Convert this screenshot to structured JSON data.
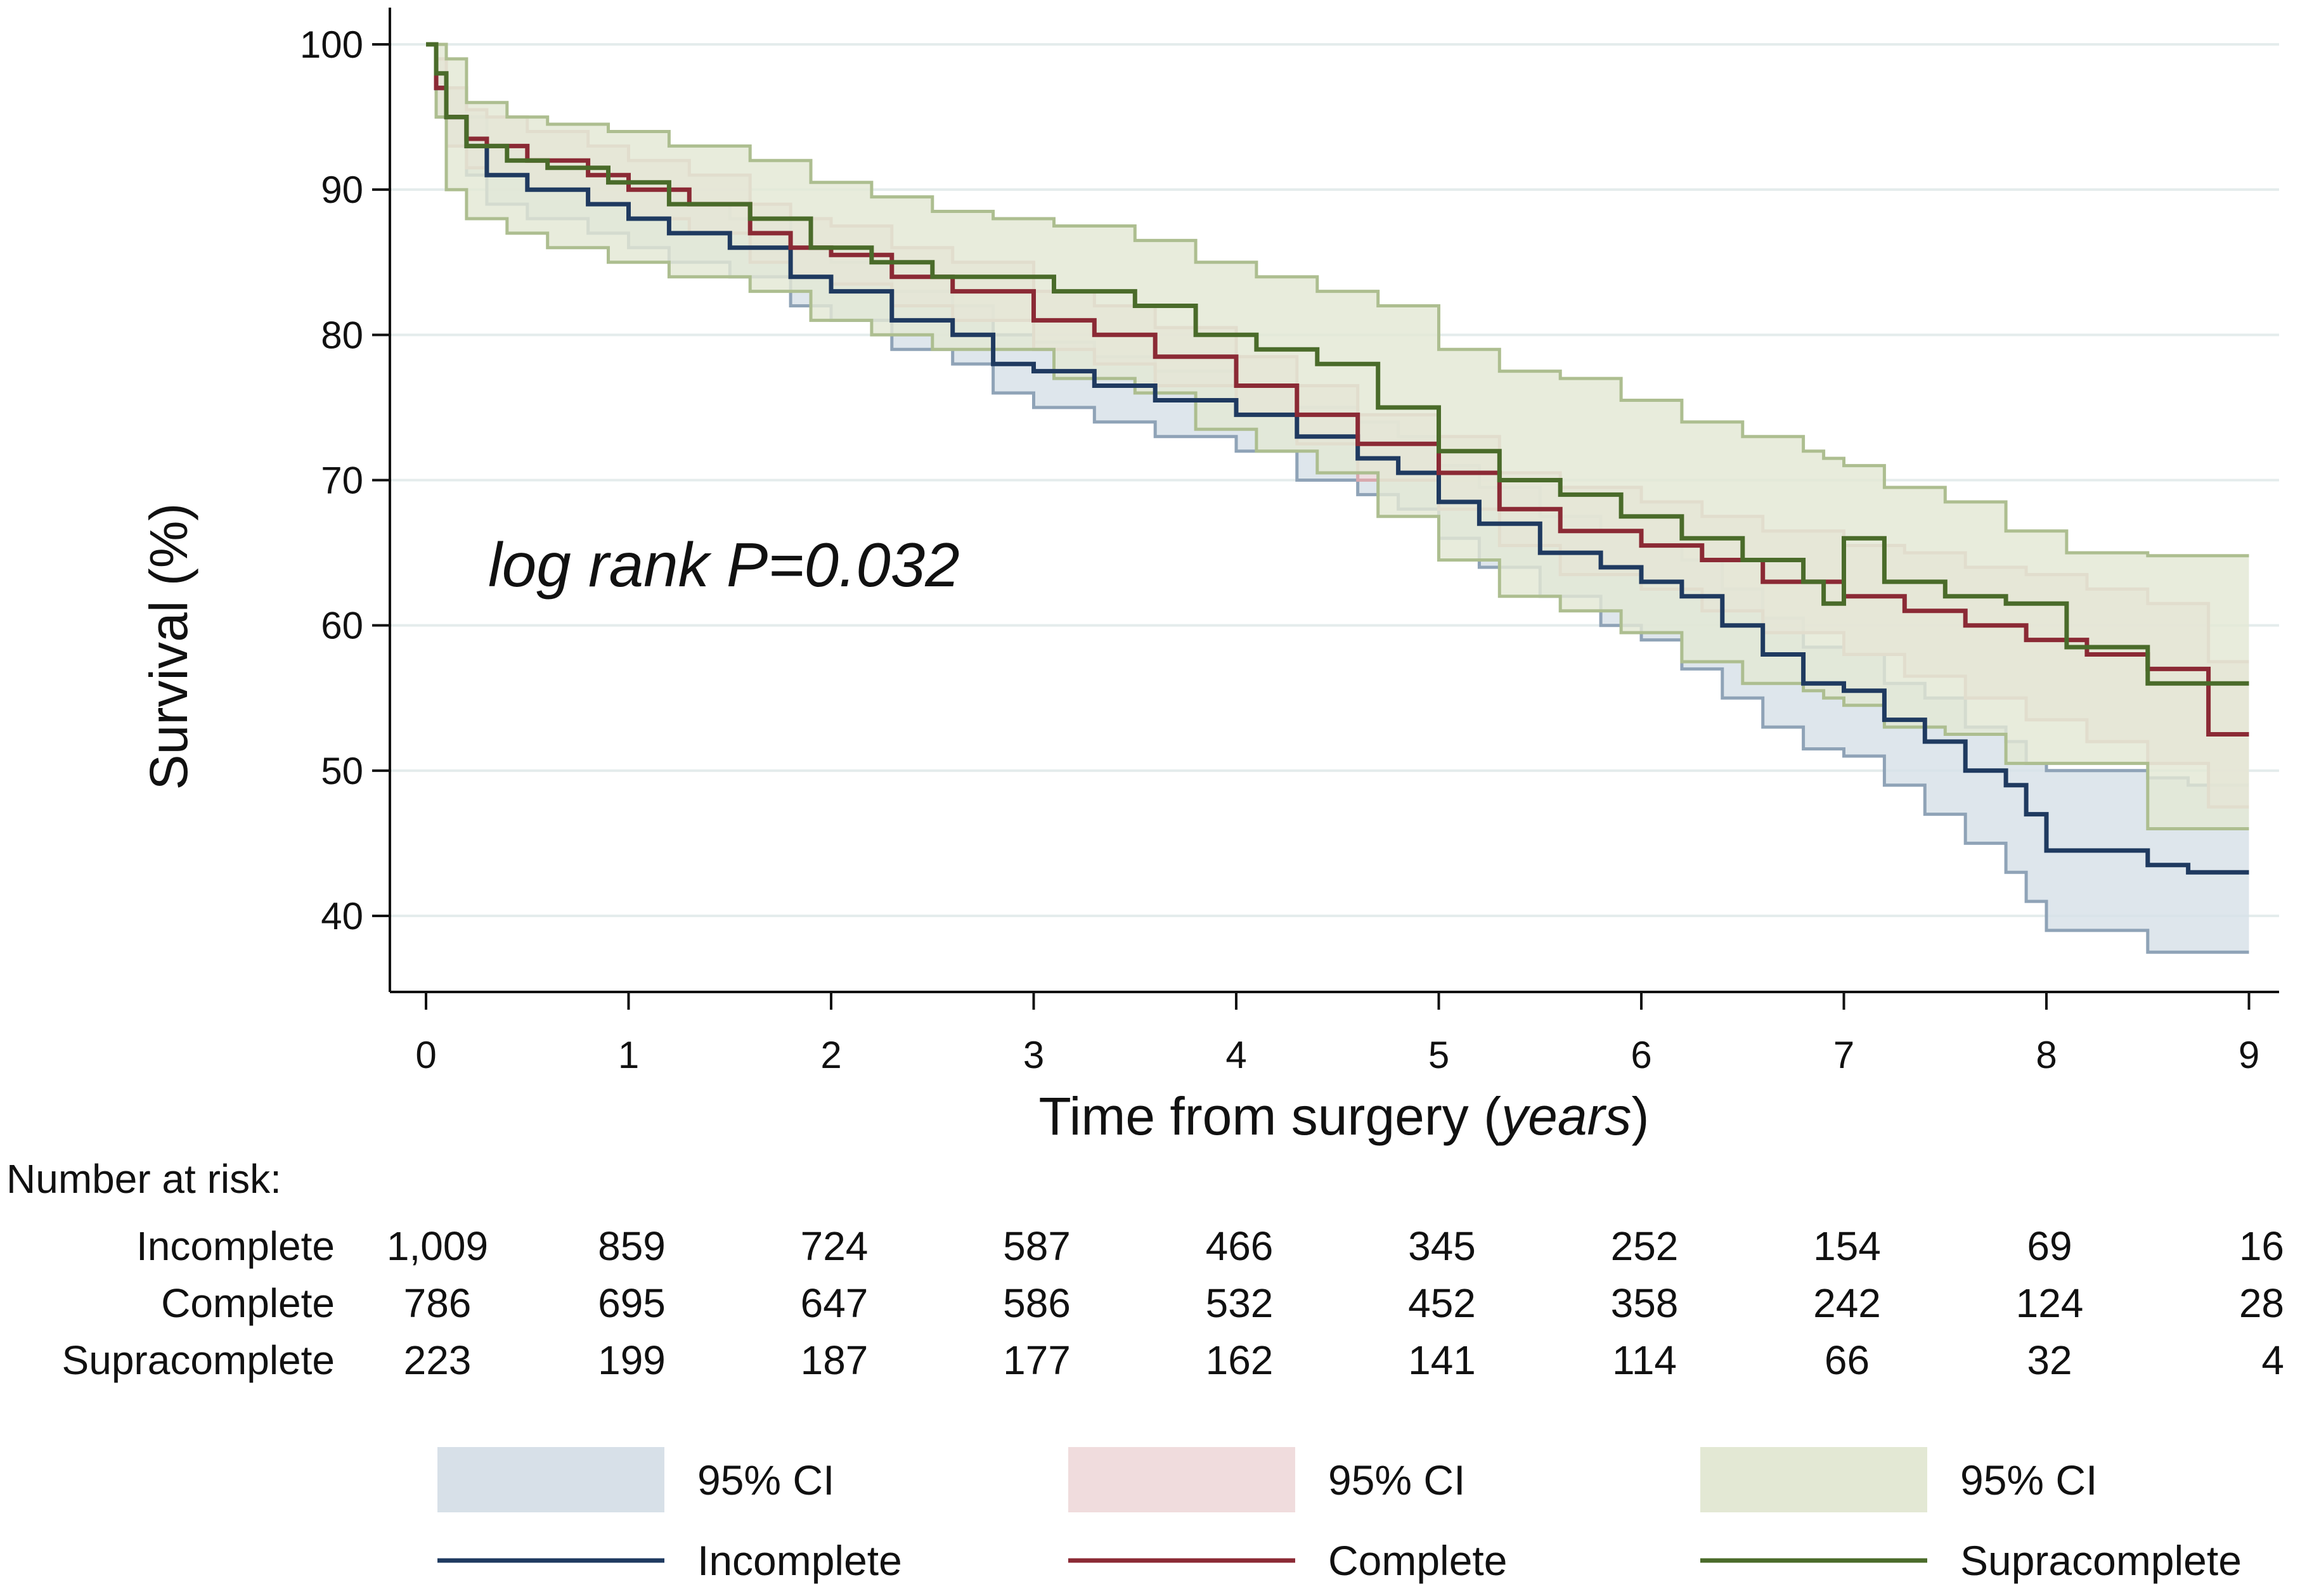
{
  "chart_data": {
    "type": "line",
    "subtype": "kaplan-meier step survival curves with 95% CI bands",
    "ylabel": "Survival (%)",
    "xlabel_prefix": "Time from surgery (",
    "xlabel_units": "years",
    "xlabel_suffix": ")",
    "xlim": [
      0,
      9
    ],
    "ylim": [
      35,
      103
    ],
    "x_ticks": [
      "0",
      "1",
      "2",
      "3",
      "4",
      "5",
      "6",
      "7",
      "8",
      "9"
    ],
    "y_ticks": [
      "40",
      "50",
      "60",
      "70",
      "80",
      "90",
      "100"
    ],
    "grid": "horizontal",
    "annotation": "log rank P=0.032",
    "series": [
      {
        "name": "Incomplete",
        "color": "#1f3a60",
        "ci_color": "#d7e0e8",
        "ci_edge": "#8fa3b7",
        "x": [
          0,
          0.05,
          0.1,
          0.2,
          0.3,
          0.5,
          0.8,
          1.0,
          1.2,
          1.5,
          1.8,
          2.0,
          2.3,
          2.6,
          2.8,
          3.0,
          3.3,
          3.6,
          4.0,
          4.3,
          4.6,
          4.8,
          5.0,
          5.2,
          5.5,
          5.8,
          6.0,
          6.2,
          6.4,
          6.6,
          6.8,
          7.0,
          7.2,
          7.4,
          7.6,
          7.8,
          7.9,
          8.0,
          8.3,
          8.5,
          8.7,
          9.0
        ],
        "y": [
          100,
          97,
          95,
          93,
          91,
          90,
          89,
          88,
          87,
          86,
          84,
          83,
          81,
          80,
          78,
          77.5,
          76.5,
          75.5,
          74.5,
          73,
          71.5,
          70.5,
          68.5,
          67,
          65,
          64,
          63,
          62,
          60,
          58,
          56,
          55.5,
          53.5,
          52,
          50,
          49,
          47,
          44.5,
          44.5,
          43.5,
          43,
          43
        ],
        "lower": [
          100,
          95,
          93,
          91,
          89,
          88,
          87,
          86,
          85,
          84,
          82,
          81,
          79,
          78,
          76,
          75,
          74,
          73,
          72,
          70,
          69,
          68,
          66,
          64,
          62,
          60,
          59,
          57,
          55,
          53,
          51.5,
          51,
          49,
          47,
          45,
          43,
          41,
          39,
          39,
          37.5,
          37.5,
          37.5
        ],
        "upper": [
          100,
          99,
          97,
          95,
          93,
          92,
          91,
          90,
          89,
          88,
          86,
          85,
          83,
          82,
          80,
          79.5,
          78.5,
          77.5,
          76.5,
          75,
          74,
          73,
          71,
          69.5,
          67.5,
          66.5,
          65.5,
          64.5,
          62.5,
          60.5,
          58.5,
          58,
          56,
          55,
          53,
          52,
          50.5,
          50,
          50,
          49.5,
          49,
          49
        ]
      },
      {
        "name": "Complete",
        "color": "#8b2a35",
        "ci_color": "#f0dcdd",
        "ci_edge": "#d8a9ae",
        "x": [
          0,
          0.05,
          0.1,
          0.2,
          0.3,
          0.5,
          0.8,
          1.0,
          1.3,
          1.6,
          1.8,
          2.0,
          2.3,
          2.6,
          3.0,
          3.3,
          3.6,
          4.0,
          4.3,
          4.6,
          5.0,
          5.3,
          5.6,
          6.0,
          6.3,
          6.6,
          7.0,
          7.3,
          7.6,
          7.9,
          8.2,
          8.5,
          8.8,
          9.0
        ],
        "y": [
          100,
          97,
          95,
          93.5,
          93,
          92,
          91,
          90,
          89,
          87,
          86,
          85.5,
          84,
          83,
          81,
          80,
          78.5,
          76.5,
          74.5,
          72.5,
          70.5,
          68,
          66.5,
          65.5,
          64.5,
          63,
          62,
          61,
          60,
          59,
          58,
          57,
          52.5,
          52.5
        ],
        "lower": [
          100,
          95,
          93,
          91.5,
          91,
          90,
          89,
          88,
          87,
          85,
          84,
          83.5,
          82,
          81,
          79,
          78,
          76.5,
          74.5,
          72.5,
          70,
          68,
          65.5,
          63.5,
          62.5,
          61,
          59.5,
          58,
          56.5,
          55,
          53.5,
          52,
          50.5,
          47.5,
          47.5
        ],
        "upper": [
          100,
          99,
          97,
          95.5,
          95,
          94,
          93,
          92,
          91,
          89,
          88,
          87.5,
          86,
          85,
          83,
          82,
          80.5,
          78.5,
          76.5,
          74.5,
          73,
          70.5,
          69.5,
          68.5,
          67.5,
          66.5,
          65.5,
          65,
          64,
          63.5,
          62.5,
          61.5,
          57.5,
          57.5
        ]
      },
      {
        "name": "Supracomplete",
        "color": "#4a6b2a",
        "ci_color": "#e3e8d4",
        "ci_edge": "#adbe90",
        "x": [
          0,
          0.05,
          0.1,
          0.2,
          0.4,
          0.6,
          0.9,
          1.2,
          1.6,
          1.9,
          2.2,
          2.5,
          2.8,
          3.1,
          3.5,
          3.8,
          4.1,
          4.4,
          4.7,
          5.0,
          5.3,
          5.6,
          5.9,
          6.2,
          6.5,
          6.8,
          6.9,
          7.0,
          7.2,
          7.5,
          7.8,
          8.1,
          8.5,
          9.0
        ],
        "y": [
          100,
          98,
          95,
          93,
          92,
          91.5,
          90.5,
          89,
          88,
          86,
          85,
          84,
          84,
          83,
          82,
          80,
          79,
          78,
          75,
          72,
          70,
          69,
          67.5,
          66,
          64.5,
          63,
          61.5,
          66,
          63,
          62,
          61.5,
          58.5,
          56,
          56
        ],
        "lower": [
          100,
          95,
          90,
          88,
          87,
          86,
          85,
          84,
          83,
          81,
          80,
          79,
          79,
          77,
          76,
          73.5,
          72,
          70.5,
          67.5,
          64.5,
          62,
          61,
          59.5,
          57.5,
          56,
          55.5,
          55,
          54.5,
          53,
          52.5,
          50.5,
          50.5,
          46,
          46
        ],
        "upper": [
          100,
          100,
          99,
          96,
          95,
          94.5,
          94,
          93,
          92,
          90.5,
          89.5,
          88.5,
          88,
          87.5,
          86.5,
          85,
          84,
          83,
          82,
          79,
          77.5,
          77,
          75.5,
          74,
          73,
          72,
          71.5,
          71,
          69.5,
          68.5,
          66.5,
          65,
          64.8,
          64.8
        ]
      }
    ],
    "number_at_risk": {
      "title": "Number at risk:",
      "rows": [
        {
          "label": "Incomplete",
          "values": [
            "1,009",
            "859",
            "724",
            "587",
            "466",
            "345",
            "252",
            "154",
            "69",
            "16"
          ]
        },
        {
          "label": "Complete",
          "values": [
            "786",
            "695",
            "647",
            "586",
            "532",
            "452",
            "358",
            "242",
            "124",
            "28"
          ]
        },
        {
          "label": "Supracomplete",
          "values": [
            "223",
            "199",
            "187",
            "177",
            "162",
            "141",
            "114",
            "66",
            "32",
            "4"
          ]
        }
      ]
    },
    "legend": {
      "placement": "bottom",
      "ci_label": "95% CI",
      "items": [
        "Incomplete",
        "Complete",
        "Supracomplete"
      ]
    }
  }
}
